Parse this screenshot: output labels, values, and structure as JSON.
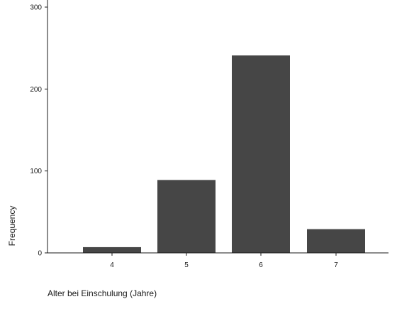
{
  "chart_data": {
    "type": "bar",
    "title": "",
    "xlabel": "Alter bei Einschulung (Jahre)",
    "ylabel": "Frequency",
    "categories": [
      "4",
      "5",
      "6",
      "7"
    ],
    "values": [
      7,
      89,
      241,
      29
    ],
    "ylim": [
      0,
      300
    ],
    "yticks": [
      0,
      100,
      200,
      300
    ],
    "grid": false,
    "bar_color": "#464646",
    "axis_color": "#1a1a1a"
  }
}
